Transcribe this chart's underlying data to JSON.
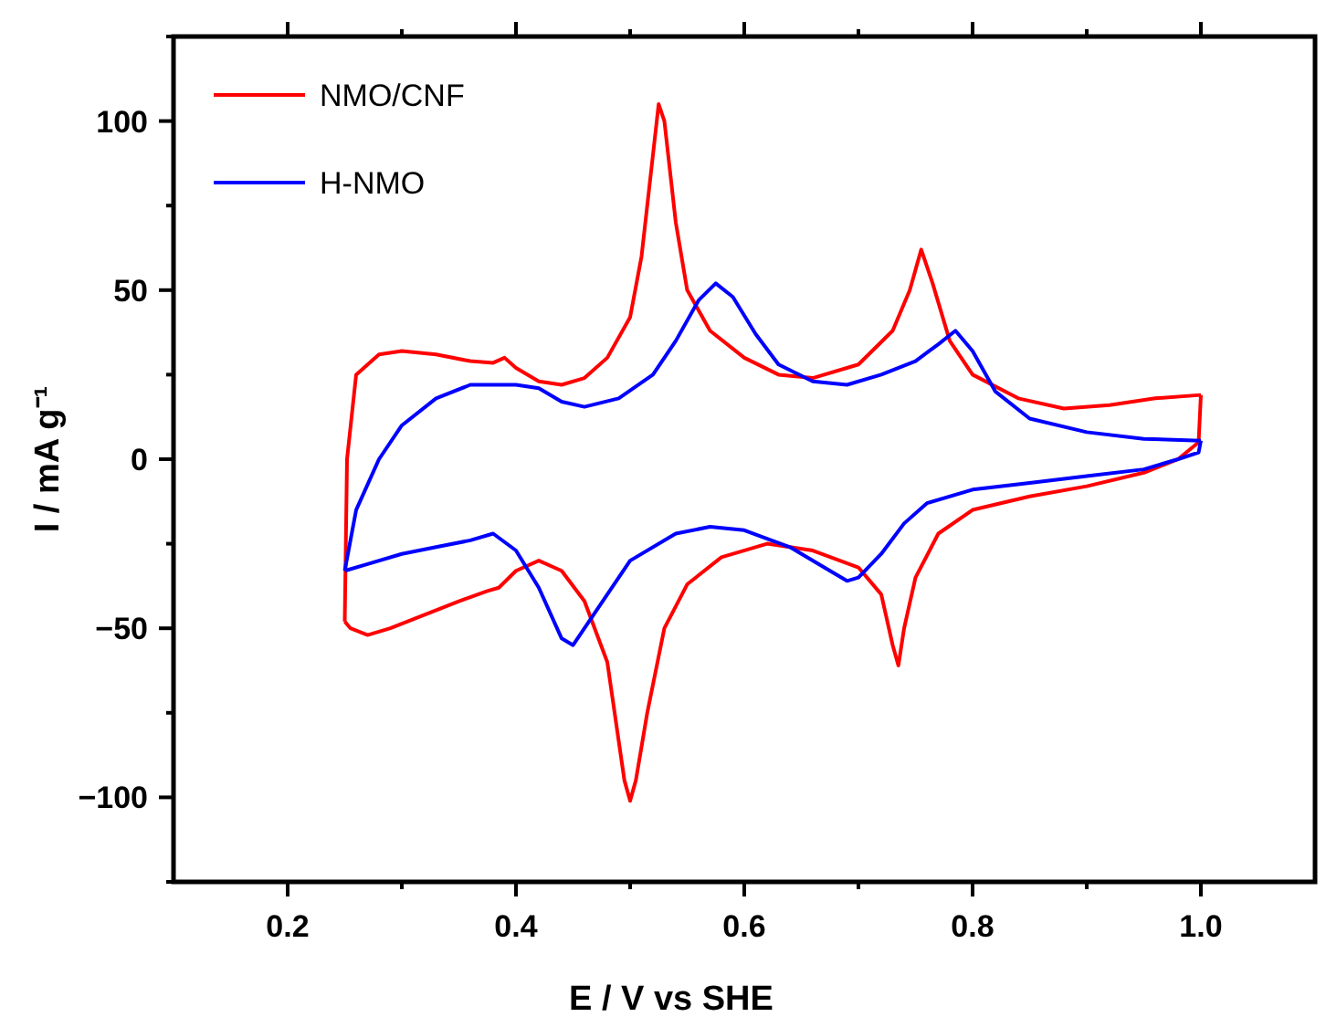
{
  "chart_data": {
    "type": "line",
    "xlabel": "E / V vs SHE",
    "ylabel": "I / mA g⁻¹",
    "xlim": [
      0.1,
      1.1
    ],
    "xticks": [
      {
        "value": 0.2,
        "label": "0.2"
      },
      {
        "value": 0.3,
        "label": null
      },
      {
        "value": 0.4,
        "label": "0.4"
      },
      {
        "value": 0.5,
        "label": null
      },
      {
        "value": 0.6,
        "label": "0.6"
      },
      {
        "value": 0.7,
        "label": null
      },
      {
        "value": 0.8,
        "label": "0.8"
      },
      {
        "value": 0.9,
        "label": null
      },
      {
        "value": 1.0,
        "label": "1.0"
      }
    ],
    "ylim": [
      -125,
      125
    ],
    "yticks": [
      {
        "value": -125,
        "label": null
      },
      {
        "value": -100,
        "label": "−100"
      },
      {
        "value": -75,
        "label": null
      },
      {
        "value": -50,
        "label": "−50"
      },
      {
        "value": -25,
        "label": null
      },
      0,
      {
        "value": 25,
        "label": null
      },
      50,
      {
        "value": 75,
        "label": null
      },
      100,
      {
        "value": 125,
        "label": null
      }
    ],
    "grid": false,
    "legend": "top left",
    "marker": "none",
    "line_style": "solid",
    "series": [
      {
        "name": "NMO/CNF",
        "color": "#ff0000",
        "x": [
          0.25,
          0.252,
          0.26,
          0.28,
          0.3,
          0.33,
          0.36,
          0.38,
          0.39,
          0.4,
          0.42,
          0.44,
          0.46,
          0.48,
          0.5,
          0.51,
          0.52,
          0.525,
          0.53,
          0.54,
          0.55,
          0.57,
          0.6,
          0.63,
          0.66,
          0.7,
          0.73,
          0.745,
          0.755,
          0.765,
          0.78,
          0.8,
          0.84,
          0.88,
          0.92,
          0.96,
          1.0
        ],
        "values": [
          -48,
          0,
          25,
          31,
          32,
          31,
          29,
          28.5,
          30,
          27,
          23,
          22,
          24,
          30,
          42,
          60,
          90,
          105,
          100,
          70,
          50,
          38,
          30,
          25,
          24,
          28,
          38,
          50,
          62,
          52,
          35,
          25,
          18,
          15,
          16,
          18,
          19
        ]
      },
      {
        "color": "#ff0000",
        "x": [
          1.0,
          0.998,
          0.98,
          0.95,
          0.9,
          0.85,
          0.8,
          0.77,
          0.75,
          0.74,
          0.735,
          0.73,
          0.72,
          0.7,
          0.66,
          0.62,
          0.58,
          0.55,
          0.53,
          0.515,
          0.505,
          0.5,
          0.495,
          0.48,
          0.46,
          0.44,
          0.42,
          0.4,
          0.385,
          0.375,
          0.35,
          0.32,
          0.29,
          0.27,
          0.255,
          0.25
        ],
        "values": [
          19,
          5,
          0,
          -4,
          -8,
          -11,
          -15,
          -22,
          -35,
          -50,
          -61,
          -55,
          -40,
          -32,
          -27,
          -25,
          -29,
          -37,
          -50,
          -75,
          -95,
          -101,
          -95,
          -60,
          -42,
          -33,
          -30,
          -33,
          -38,
          -39,
          -42,
          -46,
          -50,
          -52,
          -50,
          -48
        ]
      },
      {
        "name": "H-NMO",
        "color": "#0000ff",
        "x": [
          0.25,
          0.26,
          0.28,
          0.3,
          0.33,
          0.36,
          0.4,
          0.42,
          0.44,
          0.46,
          0.49,
          0.52,
          0.54,
          0.56,
          0.575,
          0.59,
          0.61,
          0.63,
          0.66,
          0.69,
          0.72,
          0.75,
          0.77,
          0.785,
          0.8,
          0.82,
          0.85,
          0.9,
          0.95,
          1.0
        ],
        "values": [
          -33,
          -15,
          0,
          10,
          18,
          22,
          22,
          21,
          17,
          15.5,
          18,
          25,
          35,
          47,
          52,
          48,
          37,
          28,
          23,
          22,
          25,
          29,
          34,
          38,
          32,
          20,
          12,
          8,
          6,
          5.5
        ]
      },
      {
        "color": "#0000ff",
        "x": [
          1.0,
          0.998,
          0.98,
          0.95,
          0.9,
          0.85,
          0.8,
          0.76,
          0.74,
          0.72,
          0.7,
          0.69,
          0.67,
          0.64,
          0.6,
          0.57,
          0.54,
          0.5,
          0.47,
          0.45,
          0.44,
          0.42,
          0.4,
          0.38,
          0.36,
          0.33,
          0.3,
          0.27,
          0.25
        ],
        "values": [
          5.5,
          2,
          0,
          -3,
          -5,
          -7,
          -9,
          -13,
          -19,
          -28,
          -35,
          -36,
          -32,
          -26,
          -21,
          -20,
          -22,
          -30,
          -45,
          -55,
          -53,
          -38,
          -27,
          -22,
          -24,
          -26,
          -28,
          -31,
          -33
        ]
      }
    ]
  }
}
